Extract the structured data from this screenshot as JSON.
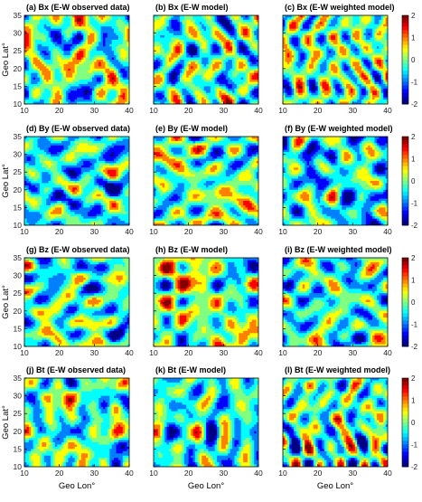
{
  "chart_data": {
    "type": "heatmap",
    "grid": false,
    "colormap": "jet",
    "xlim": [
      10,
      40
    ],
    "ylim": [
      10,
      35
    ],
    "x_ticks": [
      "10",
      "20",
      "30",
      "40"
    ],
    "y_ticks": [
      "10",
      "15",
      "20",
      "25",
      "30",
      "35"
    ],
    "xlabel": "Geo Lon°",
    "ylabel": "Geo Lat°",
    "colorbar_ticks": [
      "2",
      "1",
      "0",
      "-1",
      "-2"
    ],
    "colorbar_range": [
      -2,
      2
    ],
    "panels": [
      {
        "title": "(a) Bx (E-W observed data)",
        "row": 0,
        "col": 0,
        "seed": 11
      },
      {
        "title": "(b) Bx (E-W model)",
        "row": 0,
        "col": 1,
        "seed": 23
      },
      {
        "title": "(c) Bx (E-W weighted model)",
        "row": 0,
        "col": 2,
        "seed": 37
      },
      {
        "title": "(d) By (E-W observed data)",
        "row": 1,
        "col": 0,
        "seed": 41
      },
      {
        "title": "(e) By (E-W model)",
        "row": 1,
        "col": 1,
        "seed": 53
      },
      {
        "title": "(f) By (E-W weighted model)",
        "row": 1,
        "col": 2,
        "seed": 67
      },
      {
        "title": "(g) Bz (E-W observed data)",
        "row": 2,
        "col": 0,
        "seed": 71
      },
      {
        "title": "(h) Bz (E-W model)",
        "row": 2,
        "col": 1,
        "seed": 83
      },
      {
        "title": "(i) Bz (E-W weighted model)",
        "row": 2,
        "col": 2,
        "seed": 97
      },
      {
        "title": "(j) Bt (E-W observed data)",
        "row": 3,
        "col": 0,
        "seed": 101
      },
      {
        "title": "(k) Bt (E-W model)",
        "row": 3,
        "col": 1,
        "seed": 113
      },
      {
        "title": "(l) Bt (E-W weighted model)",
        "row": 3,
        "col": 2,
        "seed": 127
      }
    ]
  }
}
